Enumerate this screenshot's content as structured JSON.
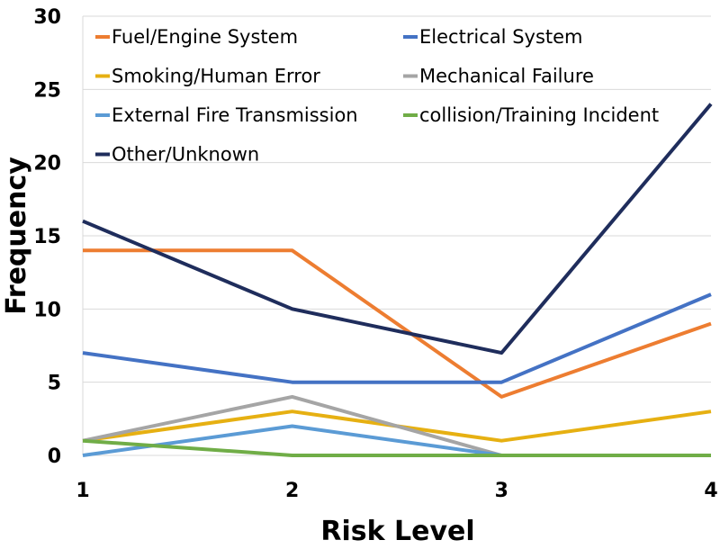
{
  "chart_data": {
    "type": "line",
    "title": "",
    "xlabel": "Risk Level",
    "ylabel": "Frequency",
    "x": [
      1,
      2,
      3,
      4
    ],
    "x_tick_labels": [
      "1",
      "2",
      "3",
      "4"
    ],
    "ylim": [
      0,
      30
    ],
    "y_ticks": [
      0,
      5,
      10,
      15,
      20,
      25,
      30
    ],
    "grid": true,
    "legend_position": "top",
    "series": [
      {
        "name": "Fuel/Engine System",
        "color": "#ED7D31",
        "values": [
          14,
          14,
          4,
          9
        ]
      },
      {
        "name": "Electrical System",
        "color": "#4472C4",
        "values": [
          7,
          5,
          5,
          11
        ]
      },
      {
        "name": "Smoking/Human Error",
        "color": "#E6B012",
        "values": [
          1,
          3,
          1,
          3
        ]
      },
      {
        "name": "Mechanical Failure",
        "color": "#A5A5A5",
        "values": [
          1,
          4,
          0,
          null
        ]
      },
      {
        "name": "External Fire Transmission",
        "color": "#5B9BD5",
        "values": [
          0,
          2,
          0,
          null
        ]
      },
      {
        "name": "collision/Training Incident",
        "color": "#70AD47",
        "values": [
          1,
          0,
          0,
          0
        ]
      },
      {
        "name": "Other/Unknown",
        "color": "#1F2D5C",
        "values": [
          16,
          10,
          7,
          24
        ]
      }
    ]
  }
}
